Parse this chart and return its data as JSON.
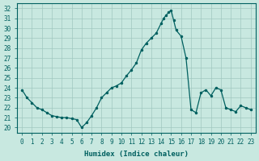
{
  "xlabel": "Humidex (Indice chaleur)",
  "ylabel": "",
  "xlim": [
    -0.5,
    23.5
  ],
  "ylim": [
    19.5,
    32.5
  ],
  "yticks": [
    20,
    21,
    22,
    23,
    24,
    25,
    26,
    27,
    28,
    29,
    30,
    31,
    32
  ],
  "xticks": [
    0,
    1,
    2,
    3,
    4,
    5,
    6,
    7,
    8,
    9,
    10,
    11,
    12,
    13,
    14,
    15,
    16,
    17,
    18,
    19,
    20,
    21,
    22,
    23
  ],
  "bg_color": "#c8e8e0",
  "grid_color": "#a0c8c0",
  "line_color": "#006060",
  "x": [
    0,
    0.5,
    1,
    1.5,
    2,
    2.5,
    3,
    3.5,
    4,
    4.5,
    5,
    5.5,
    6,
    6.5,
    7,
    7.5,
    8,
    8.5,
    9,
    9.5,
    10,
    10.5,
    11,
    11.5,
    12,
    12.5,
    13,
    13.5,
    14,
    14.25,
    14.5,
    14.75,
    15,
    15.25,
    15.5,
    16,
    16.5,
    17,
    17.5,
    18,
    18.5,
    19,
    19.5,
    20,
    20.5,
    21,
    21.5,
    22,
    22.5,
    23
  ],
  "y": [
    23.8,
    23.0,
    22.5,
    22.0,
    21.8,
    21.5,
    21.2,
    21.1,
    21.0,
    21.0,
    20.9,
    20.8,
    20.0,
    20.5,
    21.2,
    22.0,
    23.0,
    23.5,
    24.0,
    24.2,
    24.5,
    25.2,
    25.8,
    26.5,
    27.8,
    28.5,
    29.0,
    29.5,
    30.5,
    31.0,
    31.3,
    31.6,
    31.8,
    30.8,
    29.8,
    29.2,
    27.0,
    21.8,
    21.5,
    23.5,
    23.8,
    23.2,
    24.0,
    23.8,
    22.0,
    21.8,
    21.6,
    22.2,
    22.0,
    21.8
  ]
}
